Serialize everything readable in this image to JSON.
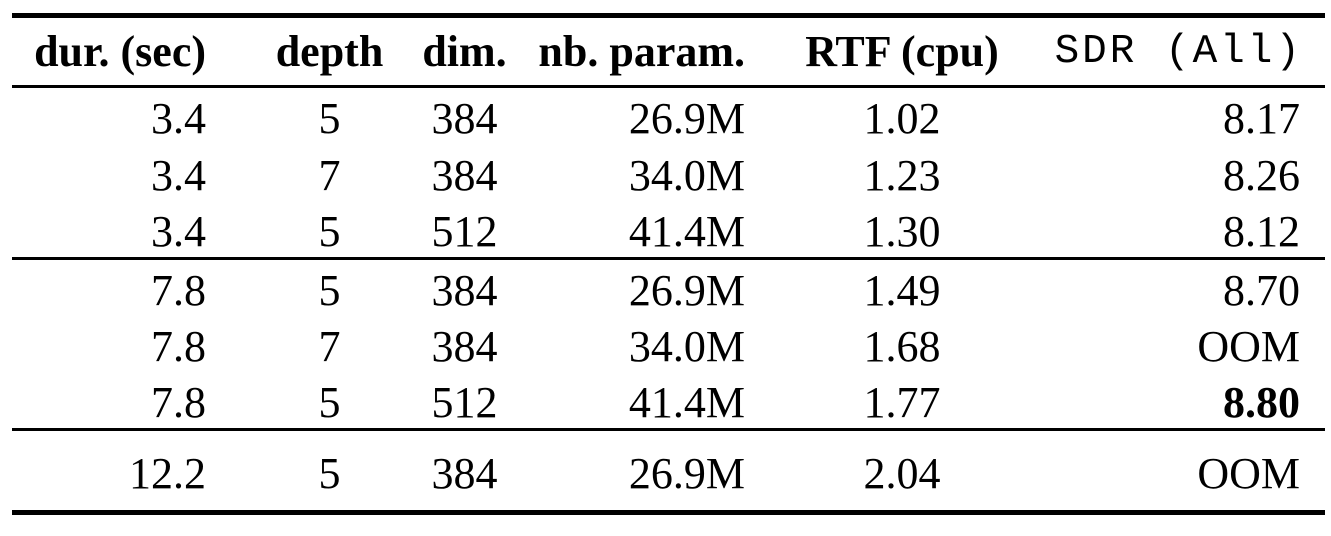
{
  "colors": {
    "background": "#ffffff",
    "text": "#000000",
    "rule": "#000000"
  },
  "table": {
    "columns": [
      {
        "key": "dur-sec",
        "label": "dur. (sec)"
      },
      {
        "key": "depth",
        "label": "depth"
      },
      {
        "key": "dim",
        "label": "dim."
      },
      {
        "key": "nb-param",
        "label": "nb. param."
      },
      {
        "key": "rtf-cpu",
        "label": "RTF (cpu)"
      },
      {
        "key": "sdr-all",
        "label": "SDR (All)"
      }
    ],
    "groups": [
      {
        "rows": [
          {
            "cells": [
              "3.4",
              "5",
              "384",
              "26.9M",
              "1.02",
              "8.17"
            ],
            "bold": []
          },
          {
            "cells": [
              "3.4",
              "7",
              "384",
              "34.0M",
              "1.23",
              "8.26"
            ],
            "bold": []
          },
          {
            "cells": [
              "3.4",
              "5",
              "512",
              "41.4M",
              "1.30",
              "8.12"
            ],
            "bold": []
          }
        ]
      },
      {
        "rows": [
          {
            "cells": [
              "7.8",
              "5",
              "384",
              "26.9M",
              "1.49",
              "8.70"
            ],
            "bold": []
          },
          {
            "cells": [
              "7.8",
              "7",
              "384",
              "34.0M",
              "1.68",
              "OOM"
            ],
            "bold": []
          },
          {
            "cells": [
              "7.8",
              "5",
              "512",
              "41.4M",
              "1.77",
              "8.80"
            ],
            "bold": [
              5
            ]
          }
        ]
      },
      {
        "rows": [
          {
            "cells": [
              "12.2",
              "5",
              "384",
              "26.9M",
              "2.04",
              "OOM"
            ],
            "bold": []
          }
        ]
      }
    ]
  }
}
